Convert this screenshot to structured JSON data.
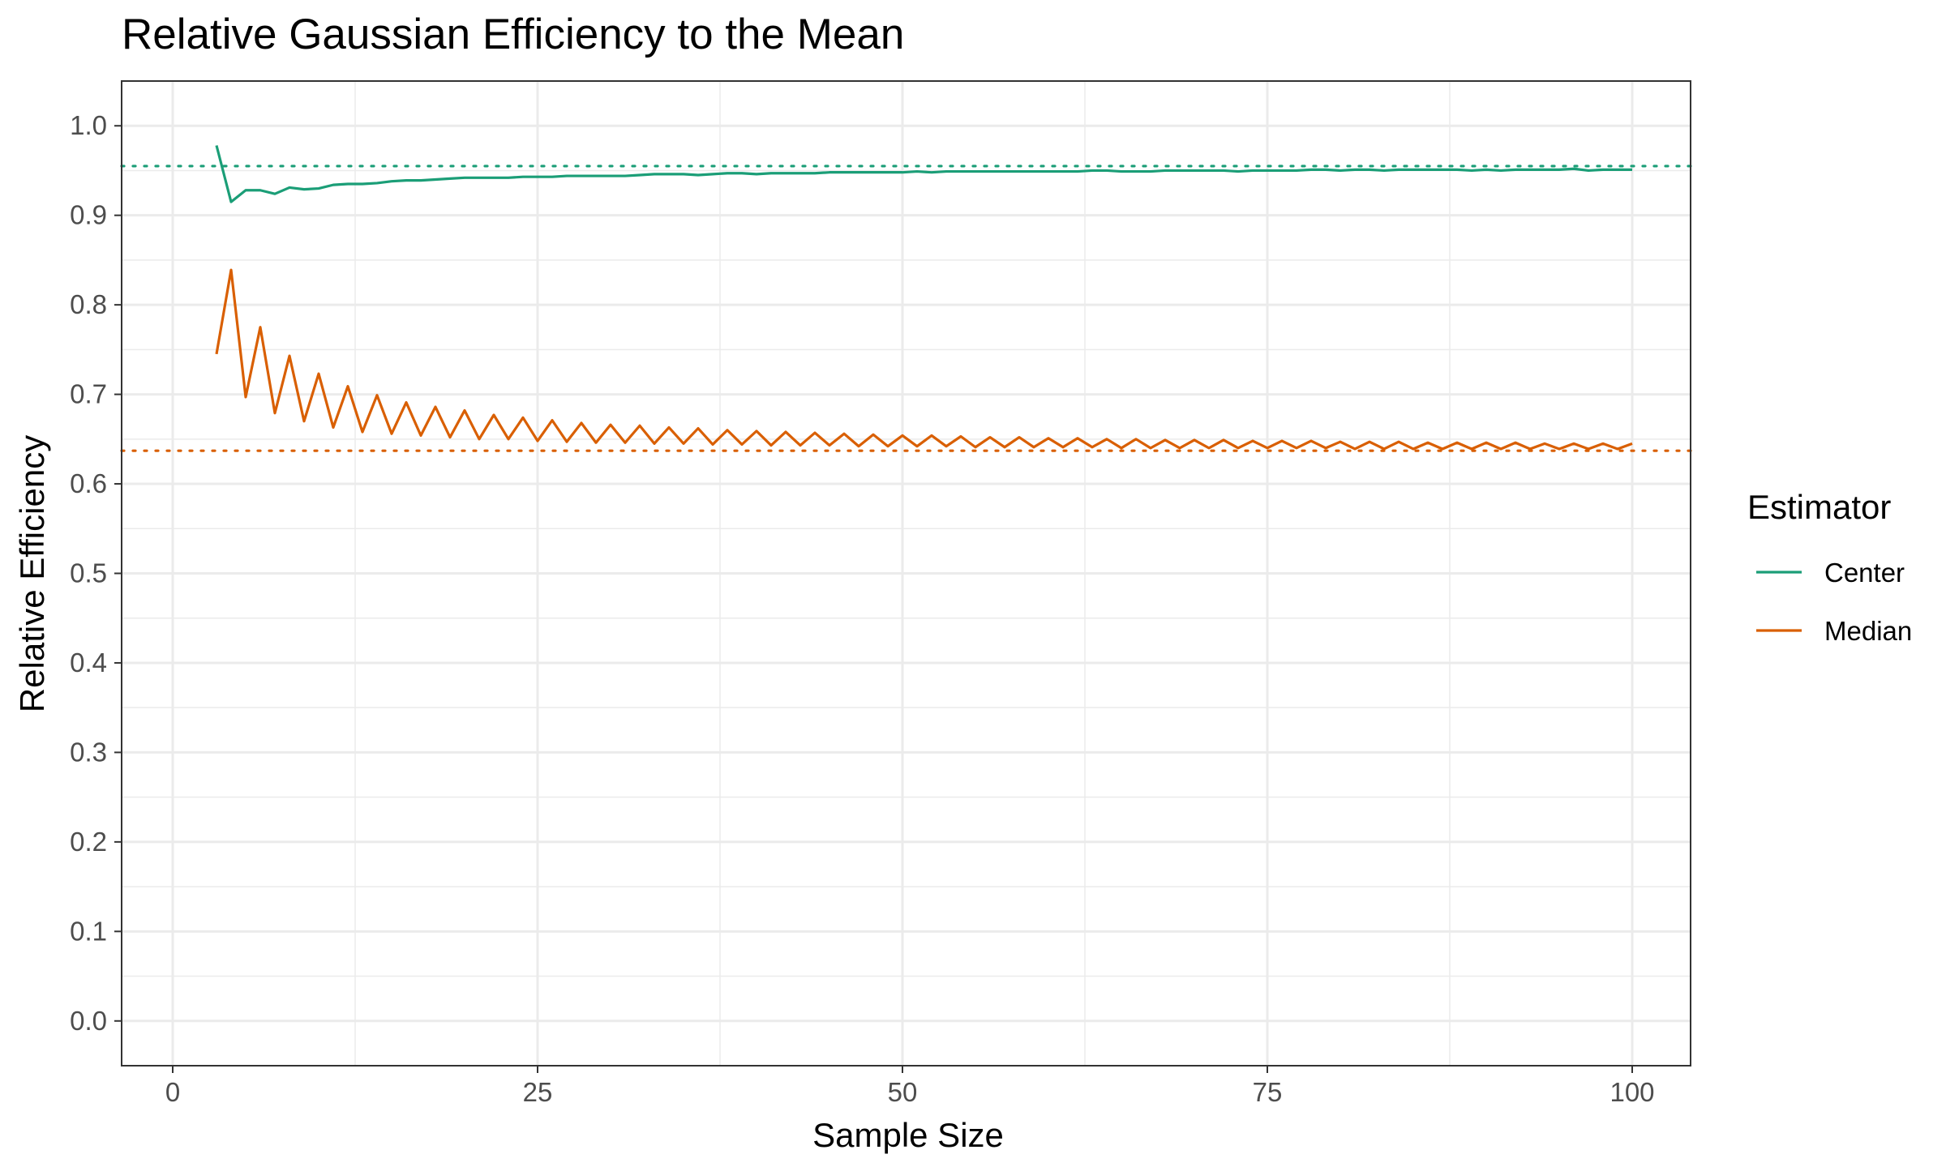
{
  "chart_data": {
    "type": "line",
    "title": "Relative Gaussian Efficiency to the Mean",
    "xlabel": "Sample Size",
    "ylabel": "Relative Efficiency",
    "xlim": [
      -3.5,
      104.0
    ],
    "ylim": [
      -0.05,
      1.05
    ],
    "x_ticks": [
      0,
      25,
      50,
      75,
      100
    ],
    "x_tick_labels": [
      "0",
      "25",
      "50",
      "75",
      "100"
    ],
    "y_ticks": [
      0.0,
      0.1,
      0.2,
      0.3,
      0.4,
      0.5,
      0.6,
      0.7,
      0.8,
      0.9,
      1.0
    ],
    "y_tick_labels": [
      "0.0",
      "0.1",
      "0.2",
      "0.3",
      "0.4",
      "0.5",
      "0.6",
      "0.7",
      "0.8",
      "0.9",
      "1.0"
    ],
    "grid": true,
    "legend": {
      "title": "Estimator",
      "placement": "right",
      "entries": [
        "Center",
        "Median"
      ]
    },
    "reference_lines": [
      {
        "series": "Center",
        "y": 0.955,
        "style": "dotted",
        "color": "#1b9e77"
      },
      {
        "series": "Median",
        "y": 0.637,
        "style": "dotted",
        "color": "#d95f02"
      }
    ],
    "x": [
      3,
      4,
      5,
      6,
      7,
      8,
      9,
      10,
      11,
      12,
      13,
      14,
      15,
      16,
      17,
      18,
      19,
      20,
      21,
      22,
      23,
      24,
      25,
      26,
      27,
      28,
      29,
      30,
      31,
      32,
      33,
      34,
      35,
      36,
      37,
      38,
      39,
      40,
      41,
      42,
      43,
      44,
      45,
      46,
      47,
      48,
      49,
      50,
      51,
      52,
      53,
      54,
      55,
      56,
      57,
      58,
      59,
      60,
      61,
      62,
      63,
      64,
      65,
      66,
      67,
      68,
      69,
      70,
      71,
      72,
      73,
      74,
      75,
      76,
      77,
      78,
      79,
      80,
      81,
      82,
      83,
      84,
      85,
      86,
      87,
      88,
      89,
      90,
      91,
      92,
      93,
      94,
      95,
      96,
      97,
      98,
      99,
      100
    ],
    "series": [
      {
        "name": "Center",
        "color": "#1b9e77",
        "values": [
          0.978,
          0.915,
          0.928,
          0.928,
          0.924,
          0.931,
          0.929,
          0.93,
          0.934,
          0.935,
          0.935,
          0.936,
          0.938,
          0.939,
          0.939,
          0.94,
          0.941,
          0.942,
          0.942,
          0.942,
          0.942,
          0.943,
          0.943,
          0.943,
          0.944,
          0.944,
          0.944,
          0.944,
          0.944,
          0.945,
          0.946,
          0.946,
          0.946,
          0.945,
          0.946,
          0.947,
          0.947,
          0.946,
          0.947,
          0.947,
          0.947,
          0.947,
          0.948,
          0.948,
          0.948,
          0.948,
          0.948,
          0.948,
          0.949,
          0.948,
          0.949,
          0.949,
          0.949,
          0.949,
          0.949,
          0.949,
          0.949,
          0.949,
          0.949,
          0.949,
          0.95,
          0.95,
          0.949,
          0.949,
          0.949,
          0.95,
          0.95,
          0.95,
          0.95,
          0.95,
          0.949,
          0.95,
          0.95,
          0.95,
          0.95,
          0.951,
          0.951,
          0.95,
          0.951,
          0.951,
          0.95,
          0.951,
          0.951,
          0.951,
          0.951,
          0.951,
          0.95,
          0.951,
          0.95,
          0.951,
          0.951,
          0.951,
          0.951,
          0.952,
          0.95,
          0.951,
          0.951,
          0.951
        ]
      },
      {
        "name": "Median",
        "color": "#d95f02",
        "values": [
          0.745,
          0.839,
          0.697,
          0.775,
          0.679,
          0.743,
          0.67,
          0.723,
          0.663,
          0.709,
          0.658,
          0.699,
          0.656,
          0.691,
          0.654,
          0.686,
          0.652,
          0.682,
          0.65,
          0.677,
          0.65,
          0.674,
          0.648,
          0.671,
          0.647,
          0.668,
          0.646,
          0.666,
          0.646,
          0.665,
          0.645,
          0.663,
          0.645,
          0.662,
          0.644,
          0.66,
          0.644,
          0.659,
          0.643,
          0.658,
          0.643,
          0.657,
          0.643,
          0.656,
          0.642,
          0.655,
          0.642,
          0.654,
          0.642,
          0.654,
          0.642,
          0.653,
          0.641,
          0.652,
          0.641,
          0.652,
          0.641,
          0.651,
          0.641,
          0.651,
          0.641,
          0.65,
          0.64,
          0.65,
          0.64,
          0.649,
          0.64,
          0.649,
          0.64,
          0.649,
          0.64,
          0.648,
          0.64,
          0.648,
          0.64,
          0.648,
          0.64,
          0.647,
          0.639,
          0.647,
          0.639,
          0.647,
          0.639,
          0.646,
          0.639,
          0.646,
          0.639,
          0.646,
          0.639,
          0.646,
          0.639,
          0.645,
          0.639,
          0.645,
          0.639,
          0.645,
          0.639,
          0.645
        ]
      }
    ]
  }
}
